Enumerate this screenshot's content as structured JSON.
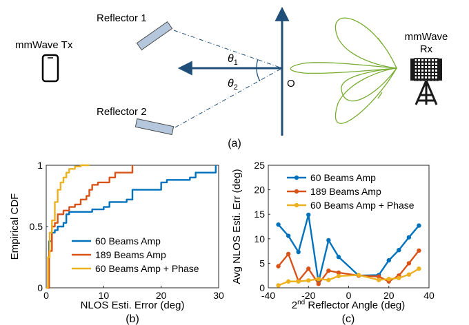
{
  "diagram": {
    "tx_label": "mmWave Tx",
    "rx_label_line1": "mmWave",
    "rx_label_line2": "Rx",
    "reflector1_label": "Reflector 1",
    "reflector2_label": "Reflector 2",
    "theta1": "θ",
    "theta1_sub": "1",
    "theta2": "θ",
    "theta2_sub": "2",
    "origin_label": "O",
    "caption": "(a)"
  },
  "colors": {
    "blue": "#0072BD",
    "orange": "#D95319",
    "yellow": "#EDB120",
    "beam_green": "#77AC30",
    "arrow_navy": "#1F4E79",
    "reflector_fill": "#B4C7DC"
  },
  "chart_data": [
    {
      "type": "line",
      "caption": "(b)",
      "xlabel": "NLOS Esti. Error (deg)",
      "ylabel": "Empirical CDF",
      "xlim": [
        0,
        30
      ],
      "ylim": [
        0,
        1
      ],
      "xticks": [
        "0",
        "10",
        "20",
        "30"
      ],
      "yticks": [
        "0",
        "0.5",
        "1"
      ],
      "legend_position": "bottom-right",
      "series": [
        {
          "name": "60 Beams Amp",
          "color": "#0072BD",
          "x": [
            0,
            0.5,
            1,
            1.5,
            2,
            3,
            3.5,
            4,
            8,
            10,
            11,
            14,
            15,
            20,
            21,
            25,
            26,
            29.5
          ],
          "y": [
            0,
            0.38,
            0.45,
            0.47,
            0.5,
            0.53,
            0.6,
            0.62,
            0.64,
            0.66,
            0.7,
            0.72,
            0.8,
            0.86,
            0.88,
            0.9,
            0.94,
            1.0
          ]
        },
        {
          "name": "189 Beams Amp",
          "color": "#D95319",
          "x": [
            0,
            0.5,
            1,
            1.5,
            2,
            3,
            4,
            5,
            6,
            7,
            7.5,
            8,
            9,
            11,
            12,
            15
          ],
          "y": [
            0,
            0.3,
            0.5,
            0.53,
            0.6,
            0.63,
            0.66,
            0.68,
            0.72,
            0.75,
            0.8,
            0.84,
            0.86,
            0.9,
            0.94,
            1.0
          ]
        },
        {
          "name": "60 Beams Amp + Phase",
          "color": "#EDB120",
          "x": [
            0,
            0.3,
            0.6,
            1,
            1.5,
            2,
            2.5,
            3,
            3.5,
            4,
            5,
            6,
            7.5
          ],
          "y": [
            0,
            0.25,
            0.45,
            0.55,
            0.7,
            0.8,
            0.86,
            0.9,
            0.94,
            0.97,
            0.99,
            1.0,
            1.0
          ]
        }
      ]
    },
    {
      "type": "line",
      "caption": "(c)",
      "xlabel_base": "2",
      "xlabel_sup": "nd",
      "xlabel_rest": " Reflector Angle (deg)",
      "ylabel": "Avg NLOS Esti. Err (deg)",
      "xlim": [
        -40,
        40
      ],
      "ylim": [
        0,
        25
      ],
      "xticks": [
        "-40",
        "-20",
        "0",
        "20",
        "40"
      ],
      "yticks": [
        "0",
        "5",
        "10",
        "15",
        "20",
        "25"
      ],
      "legend_position": "top-right",
      "x": [
        -35,
        -30,
        -25,
        -20,
        -15,
        -10,
        -5,
        5,
        15,
        20,
        25,
        30,
        35
      ],
      "series": [
        {
          "name": "60 Beams Amp",
          "color": "#0072BD",
          "values": [
            12.9,
            10.6,
            7.3,
            14.9,
            1.2,
            9.7,
            6.3,
            2.5,
            2.6,
            5.6,
            7.7,
            10.3,
            12.7
          ]
        },
        {
          "name": "189 Beams Amp",
          "color": "#D95319",
          "values": [
            4.4,
            6.9,
            1.4,
            3.9,
            0.8,
            3.5,
            3.1,
            2.5,
            2.3,
            1.3,
            2.5,
            5.0,
            7.6
          ]
        },
        {
          "name": "60 Beams Amp + Phase",
          "color": "#EDB120",
          "values": [
            0.5,
            1.3,
            1.3,
            1.5,
            1.8,
            1.6,
            2.4,
            2.6,
            1.6,
            1.8,
            2.0,
            2.7,
            3.9
          ]
        }
      ]
    }
  ]
}
